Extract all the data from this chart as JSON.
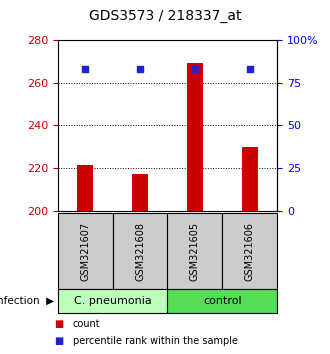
{
  "title": "GDS3573 / 218337_at",
  "categories": [
    "GSM321607",
    "GSM321608",
    "GSM321605",
    "GSM321606"
  ],
  "bar_values": [
    221.5,
    217.5,
    269.0,
    230.0
  ],
  "bar_bottom": 200,
  "percentile_values": [
    83,
    83,
    83,
    83
  ],
  "left_ylim": [
    200,
    280
  ],
  "left_yticks": [
    200,
    220,
    240,
    260,
    280
  ],
  "right_ylim": [
    0,
    100
  ],
  "right_yticks": [
    0,
    25,
    50,
    75,
    100
  ],
  "right_yticklabels": [
    "0",
    "25",
    "50",
    "75",
    "100%"
  ],
  "bar_color": "#cc0000",
  "dot_color": "#2222cc",
  "groups": [
    {
      "label": "C. pneumonia",
      "color": "#bbffbb"
    },
    {
      "label": "control",
      "color": "#55dd55"
    }
  ],
  "infection_label": "infection",
  "box_color": "#cccccc",
  "title_fontsize": 10,
  "tick_fontsize": 8,
  "bar_width": 0.3
}
